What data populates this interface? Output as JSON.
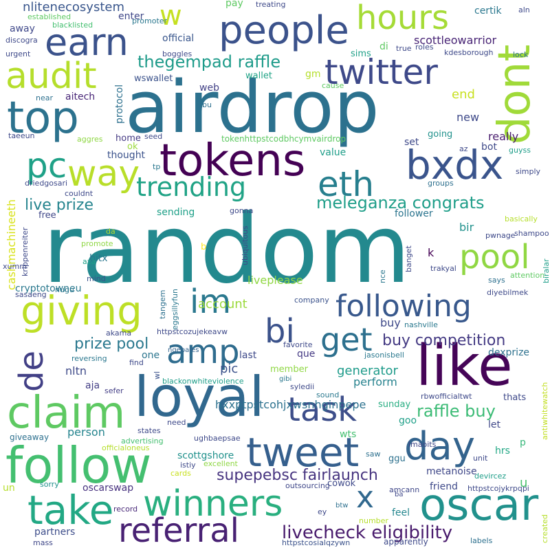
{
  "words": [
    {
      "text": "random",
      "color": "#23898e"
    },
    {
      "text": "airdrop",
      "color": "#2c718e"
    },
    {
      "text": "loyal",
      "color": "#31688e"
    },
    {
      "text": "follow",
      "color": "#44bf70"
    },
    {
      "text": "like",
      "color": "#450457"
    },
    {
      "text": "tokens",
      "color": "#440154"
    },
    {
      "text": "claim",
      "color": "#5ec962"
    },
    {
      "text": "top",
      "color": "#2c728e"
    },
    {
      "text": "oscar",
      "color": "#21918c"
    },
    {
      "text": "people",
      "color": "#3b528b"
    },
    {
      "text": "dont",
      "color": "#a0da39"
    },
    {
      "text": "twitter",
      "color": "#3e4989"
    },
    {
      "text": "bxdx",
      "color": "#3a548c"
    },
    {
      "text": "tweet",
      "color": "#355f8d"
    },
    {
      "text": "take",
      "color": "#22a884"
    },
    {
      "text": "winners",
      "color": "#29af7f"
    },
    {
      "text": "referral",
      "color": "#482173"
    },
    {
      "text": "following",
      "color": "#38588c"
    },
    {
      "text": "giving",
      "color": "#bddf26"
    },
    {
      "text": "day",
      "color": "#33638d"
    },
    {
      "text": "hours",
      "color": "#a5db36"
    },
    {
      "text": "audit",
      "color": "#b5de2b"
    },
    {
      "text": "earn",
      "color": "#3b528b"
    },
    {
      "text": "way",
      "color": "#b8de29"
    },
    {
      "text": "pc",
      "color": "#1fa187"
    },
    {
      "text": "eth",
      "color": "#277f8e"
    },
    {
      "text": "trending",
      "color": "#20a386"
    },
    {
      "text": "pool",
      "color": "#90d743"
    },
    {
      "text": "task",
      "color": "#3d4e8a"
    },
    {
      "text": "im",
      "color": "#2a788e"
    },
    {
      "text": "bi",
      "color": "#3b528b"
    },
    {
      "text": "get",
      "color": "#2d708e"
    },
    {
      "text": "amp",
      "color": "#2f6c8e"
    },
    {
      "text": "de",
      "color": "#424086"
    },
    {
      "text": "x",
      "color": "#31688e"
    },
    {
      "text": "w",
      "color": "#c5e021"
    },
    {
      "text": "livecheck eligibility",
      "color": "#481a6c"
    },
    {
      "text": "meleganza congrats",
      "color": "#1f9e89"
    },
    {
      "text": "buy competition",
      "color": "#443a83"
    },
    {
      "text": "thegempad raffle",
      "color": "#1e9b8a"
    },
    {
      "text": "supepebsc fairlaunch",
      "color": "#46337f"
    },
    {
      "text": "prize pool",
      "color": "#2a788e"
    },
    {
      "text": "live prize",
      "color": "#25848e"
    },
    {
      "text": "raffle buy",
      "color": "#3bbb75"
    },
    {
      "text": "hxxptpstcohjxwsnhginpepe",
      "color": "#2c718e"
    },
    {
      "text": "nlitenecosystem",
      "color": "#39568c"
    },
    {
      "text": "scottgshore",
      "color": "#21918c"
    },
    {
      "text": "generator",
      "color": "#1e9b8a"
    },
    {
      "text": "scottleowarrior",
      "color": "#482475"
    },
    {
      "text": "tokenhttpstcodbhcymvairdrop",
      "color": "#5ec962"
    },
    {
      "text": "cashmachineeth",
      "color": "#d8e219"
    },
    {
      "text": "buy",
      "color": "#3e4989"
    },
    {
      "text": "really",
      "color": "#481b6d"
    },
    {
      "text": "pic",
      "color": "#3b528b"
    },
    {
      "text": "account",
      "color": "#9bd93c"
    },
    {
      "text": "liveplease",
      "color": "#90d743"
    },
    {
      "text": "perform",
      "color": "#26828e"
    },
    {
      "text": "person",
      "color": "#25848e"
    },
    {
      "text": "nltn",
      "color": "#3e4a89"
    },
    {
      "text": "oscarswap",
      "color": "#46307e"
    },
    {
      "text": "cryptotowneu",
      "color": "#2a788e"
    },
    {
      "text": "metanoise",
      "color": "#3f4788"
    },
    {
      "text": "pay",
      "color": "#5ec962"
    },
    {
      "text": "new",
      "color": "#3e4989"
    },
    {
      "text": "end",
      "color": "#c8e020"
    },
    {
      "text": "bir",
      "color": "#21918c"
    },
    {
      "text": "friend",
      "color": "#3e4989"
    },
    {
      "text": "partners",
      "color": "#3d4d8a"
    },
    {
      "text": "giveaway",
      "color": "#2d708e"
    },
    {
      "text": "wswallet",
      "color": "#3b528b"
    },
    {
      "text": "protocol",
      "color": "#2d708e"
    },
    {
      "text": "aitech",
      "color": "#482677"
    },
    {
      "text": "away",
      "color": "#3f4889"
    },
    {
      "text": "certik",
      "color": "#2a778e"
    },
    {
      "text": "bot",
      "color": "#3e4989"
    },
    {
      "text": "hrs",
      "color": "#22a785"
    },
    {
      "text": "aja",
      "color": "#433e85"
    },
    {
      "text": "u",
      "color": "#4ac16d"
    },
    {
      "text": "let",
      "color": "#3f4788"
    },
    {
      "text": "goo",
      "color": "#1f9f88"
    },
    {
      "text": "thats",
      "color": "#3e4989"
    },
    {
      "text": "feel",
      "color": "#24868e"
    },
    {
      "text": "dexprize",
      "color": "#2d718e"
    },
    {
      "text": "wts",
      "color": "#44bf70"
    },
    {
      "text": "sunday",
      "color": "#27ad81"
    },
    {
      "text": "cowok",
      "color": "#3e4989"
    },
    {
      "text": "ggu",
      "color": "#2d718e"
    },
    {
      "text": "value",
      "color": "#1f9e89"
    },
    {
      "text": "set",
      "color": "#3e4989"
    },
    {
      "text": "going",
      "color": "#21918c"
    },
    {
      "text": "web",
      "color": "#424186"
    },
    {
      "text": "official",
      "color": "#39568c"
    },
    {
      "text": "enter",
      "color": "#3f4788"
    },
    {
      "text": "wallet",
      "color": "#20a386"
    },
    {
      "text": "gm",
      "color": "#b5de2b"
    },
    {
      "text": "di",
      "color": "#5ec962"
    },
    {
      "text": "sims",
      "color": "#1fa088"
    },
    {
      "text": "home",
      "color": "#443983"
    },
    {
      "text": "thought",
      "color": "#3b528b"
    },
    {
      "text": "ok",
      "color": "#9bd93c"
    },
    {
      "text": "member",
      "color": "#8fd744"
    },
    {
      "text": "last",
      "color": "#3e4989"
    },
    {
      "text": "que",
      "color": "#443983"
    },
    {
      "text": "one",
      "color": "#2b758e"
    },
    {
      "text": "bitx",
      "color": "#2a768e"
    },
    {
      "text": "free",
      "color": "#3f4788"
    },
    {
      "text": "follower",
      "color": "#2b748e"
    },
    {
      "text": "sending",
      "color": "#1fa088"
    },
    {
      "text": "k",
      "color": "#440154"
    },
    {
      "text": "p",
      "color": "#35b779"
    },
    {
      "text": "aza",
      "color": "#1fa088"
    },
    {
      "text": "b",
      "color": "#fde725"
    },
    {
      "text": "sefer",
      "color": "#433e85"
    },
    {
      "text": "lmaoits",
      "color": "#3f4788"
    },
    {
      "text": "record",
      "color": "#482878"
    },
    {
      "text": "mind",
      "color": "#3b528b"
    },
    {
      "text": "says",
      "color": "#2d708e"
    },
    {
      "text": "mass",
      "color": "#3f4788"
    },
    {
      "text": "company",
      "color": "#3b528b"
    },
    {
      "text": "reversing",
      "color": "#2a778e"
    },
    {
      "text": "akama",
      "color": "#3e4989"
    },
    {
      "text": "find",
      "color": "#3e4989"
    },
    {
      "text": "ngebales",
      "color": "#33638d"
    },
    {
      "text": "syledii",
      "color": "#3e4989"
    },
    {
      "text": "gibi",
      "color": "#2a778e"
    },
    {
      "text": "favorite",
      "color": "#3e4989"
    },
    {
      "text": "jasonisbell",
      "color": "#2a788e"
    },
    {
      "text": "sound",
      "color": "#2a788e"
    },
    {
      "text": "nashville",
      "color": "#2a788e"
    },
    {
      "text": "rbwofficialtwt",
      "color": "#3e4989"
    },
    {
      "text": "antiwhitewatch",
      "color": "#c2df23"
    },
    {
      "text": "devircez",
      "color": "#1f9e89"
    },
    {
      "text": "httpstcojykrpqpi",
      "color": "#3e4989"
    },
    {
      "text": "ey",
      "color": "#3e4989"
    },
    {
      "text": "amcann",
      "color": "#3f4788"
    },
    {
      "text": "btw",
      "color": "#2d708e"
    },
    {
      "text": "number",
      "color": "#b5de2b"
    },
    {
      "text": "apparently",
      "color": "#3e4989"
    },
    {
      "text": "labels",
      "color": "#2d708e"
    },
    {
      "text": "created",
      "color": "#b5de2b"
    },
    {
      "text": "httpstcosialqzywn",
      "color": "#3b528b"
    },
    {
      "text": "ba",
      "color": "#3f4788"
    },
    {
      "text": "outsourcing",
      "color": "#3f4788"
    },
    {
      "text": "excellent",
      "color": "#8fd744"
    },
    {
      "text": "sorry",
      "color": "#21918c"
    },
    {
      "text": "un",
      "color": "#b5de2b"
    },
    {
      "text": "cards",
      "color": "#c8e020"
    },
    {
      "text": "istiy",
      "color": "#3e4989"
    },
    {
      "text": "advertising",
      "color": "#44bf70"
    },
    {
      "text": "officialoneus",
      "color": "#b5de2b"
    },
    {
      "text": "ughbaepsae",
      "color": "#3e4989"
    },
    {
      "text": "states",
      "color": "#3e4989"
    },
    {
      "text": "need",
      "color": "#3e4989"
    },
    {
      "text": "unit",
      "color": "#3e4989"
    },
    {
      "text": "saw",
      "color": "#2d708e"
    },
    {
      "text": "blackonwhiteviolence",
      "color": "#1f9e89"
    },
    {
      "text": "wl",
      "color": "#3b528b"
    },
    {
      "text": "tangem",
      "color": "#2d708e"
    },
    {
      "text": "eggsillyfun",
      "color": "#2a778e"
    },
    {
      "text": "httpstcozujekeavw",
      "color": "#3e4989"
    },
    {
      "text": "ubiquitous",
      "color": "#3e4989"
    },
    {
      "text": "nce",
      "color": "#2a778e"
    },
    {
      "text": "banget",
      "color": "#3e4989"
    },
    {
      "text": "trakyal",
      "color": "#3e4989"
    },
    {
      "text": "diyebilmek",
      "color": "#3e4989"
    },
    {
      "text": "attention",
      "color": "#5ec962"
    },
    {
      "text": "biralar",
      "color": "#1f9e89"
    },
    {
      "text": "pwnage",
      "color": "#3e4989"
    },
    {
      "text": "shampoo",
      "color": "#3e4989"
    },
    {
      "text": "basically",
      "color": "#b5de2b"
    },
    {
      "text": "groups",
      "color": "#2d708e"
    },
    {
      "text": "simply",
      "color": "#3e4989"
    },
    {
      "text": "guyss",
      "color": "#1f9e89"
    },
    {
      "text": "az",
      "color": "#3e4989"
    },
    {
      "text": "tp",
      "color": "#2a778e"
    },
    {
      "text": "seed",
      "color": "#3e4989"
    },
    {
      "text": "aggres",
      "color": "#8fd744"
    },
    {
      "text": "taeeun",
      "color": "#3e4989"
    },
    {
      "text": "near",
      "color": "#2d708e"
    },
    {
      "text": "urgent",
      "color": "#3e4989"
    },
    {
      "text": "discogra",
      "color": "#3e4989"
    },
    {
      "text": "established",
      "color": "#5ec962"
    },
    {
      "text": "blacklisted",
      "color": "#44bf70"
    },
    {
      "text": "xumm",
      "color": "#3e4989"
    },
    {
      "text": "sasaeng",
      "color": "#3e4989"
    },
    {
      "text": "krippenreiter",
      "color": "#3e4989"
    },
    {
      "text": "nugu",
      "color": "#2a778e"
    },
    {
      "text": "driedgosari",
      "color": "#3e4989"
    },
    {
      "text": "couldnt",
      "color": "#3e4989"
    },
    {
      "text": "promote",
      "color": "#8fd744"
    },
    {
      "text": "da",
      "color": "#b5de2b"
    },
    {
      "text": "gonna",
      "color": "#3e4989"
    },
    {
      "text": "bu",
      "color": "#2d708e"
    },
    {
      "text": "cause",
      "color": "#5ec962"
    },
    {
      "text": "treating",
      "color": "#3e4989"
    },
    {
      "text": "promoter",
      "color": "#2a778e"
    },
    {
      "text": "boggles",
      "color": "#3e4989"
    },
    {
      "text": "true",
      "color": "#3e4989"
    },
    {
      "text": "roles",
      "color": "#3e4989"
    },
    {
      "text": "kdesborough",
      "color": "#3e4989"
    },
    {
      "text": "aln",
      "color": "#3e4989"
    },
    {
      "text": "lock",
      "color": "#2d708e"
    }
  ]
}
